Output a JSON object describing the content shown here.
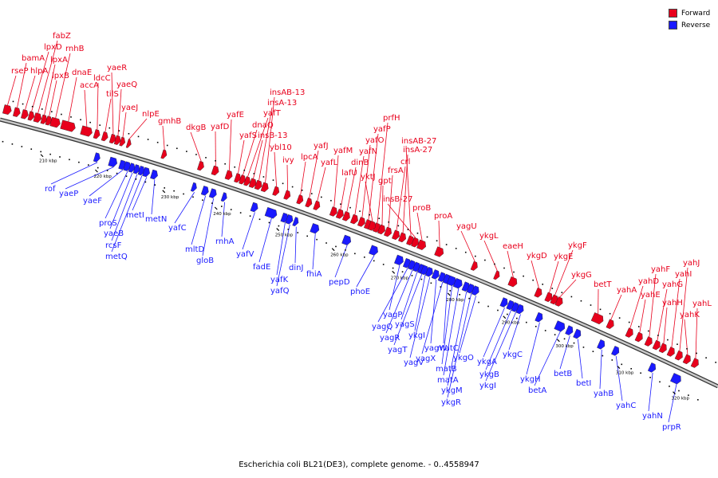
{
  "legend": {
    "forward_label": "Forward",
    "reverse_label": "Reverse",
    "forward_color": "#e8001c",
    "reverse_color": "#1a1aff"
  },
  "caption": "Escherichia coli BL21(DE3), complete genome. - 0..4558947",
  "ticks": [
    "210 kbp",
    "220 kbp",
    "230 kbp",
    "240 kbp",
    "250 kbp",
    "260 kbp",
    "270 kbp",
    "280 kbp",
    "290 kbp",
    "300 kbp",
    "310 kbp",
    "320 kbp"
  ],
  "forward_genes": [
    "rseP",
    "bamA",
    "hlpA",
    "lpxD",
    "fabZ",
    "lpxA",
    "lpxB",
    "rnhB",
    "dnaE",
    "accA",
    "ldcC",
    "tilS",
    "yaeR",
    "yaeQ",
    "yaeJ",
    "nlpE",
    "gmhB",
    "dkgB",
    "yafD",
    "yafE",
    "yafS",
    "dnaQ",
    "yafT",
    "insB-13",
    "insA-13",
    "insAB-13",
    "ybl10",
    "ivy",
    "lpcA",
    "yafJ",
    "yafL",
    "yafM",
    "lafU",
    "dinB",
    "yafN",
    "yafO",
    "yafP",
    "prfH",
    "yktJ",
    "gpt",
    "frsA",
    "crl",
    "insA-27",
    "insAB-27",
    "insB-27",
    "proB",
    "proA",
    "yagU",
    "ykgL",
    "eaeH",
    "ykgD",
    "ykgE",
    "ykgF",
    "ykgG",
    "betT",
    "yahA",
    "yahD",
    "yahE",
    "yahF",
    "yahG",
    "yahH",
    "yahI",
    "yahJ",
    "yahK",
    "yahL"
  ],
  "reverse_genes": [
    "rof",
    "yaeP",
    "yaeF",
    "proS",
    "yaeB",
    "rcsF",
    "metQ",
    "metI",
    "metN",
    "yafC",
    "mltD",
    "gloB",
    "rnhA",
    "yafV",
    "fadE",
    "yafK",
    "yafQ",
    "dinJ",
    "fhiA",
    "pepD",
    "phoE",
    "yagP",
    "yagQ",
    "yagR",
    "yagS",
    "yagT",
    "ykgI",
    "yagV",
    "yagW",
    "yagX",
    "matC",
    "matB",
    "matA",
    "ykgM",
    "ykgR",
    "ykgO",
    "ykgA",
    "ykgB",
    "ykgI",
    "ykgC",
    "ykgH",
    "betA",
    "betB",
    "betI",
    "yahB",
    "yahC",
    "yahN",
    "prpR"
  ]
}
